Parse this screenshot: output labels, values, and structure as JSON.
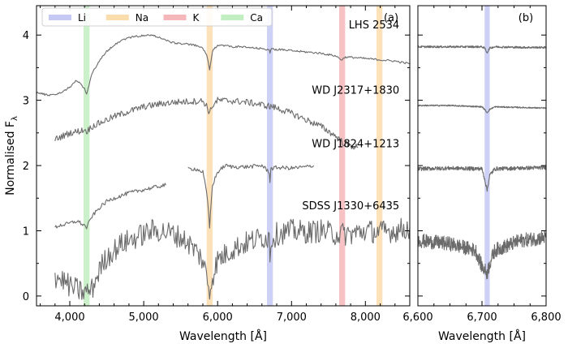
{
  "chart_data": [
    {
      "panel_label": "(a)",
      "type": "line",
      "xlabel": "Wavelength [Å]",
      "ylabel": "Normalised F",
      "ylabel_sub": "λ",
      "xlim": [
        3550,
        8600
      ],
      "ylim": [
        -0.15,
        4.45
      ],
      "xticks": [
        4000,
        5000,
        6000,
        7000,
        8000
      ],
      "xtick_labels": [
        "4,000",
        "5,000",
        "6,000",
        "7,000",
        "8,000"
      ],
      "xtick_minor": [
        3600,
        3800,
        4200,
        4400,
        4600,
        4800,
        5200,
        5400,
        5600,
        5800,
        6200,
        6400,
        6600,
        6800,
        7200,
        7400,
        7600,
        7800,
        8200,
        8400
      ],
      "yticks": [
        0,
        1,
        2,
        3,
        4
      ],
      "ytick_labels": [
        "0",
        "1",
        "2",
        "3",
        "4"
      ],
      "ytick_minor": [
        0.5,
        1.5,
        2.5,
        3.5
      ],
      "legend": {
        "placement": "top-left",
        "entries": [
          {
            "label": "Li",
            "color": "#c5c9f4"
          },
          {
            "label": "Na",
            "color": "#fbdcad"
          },
          {
            "label": "K",
            "color": "#f5b7ba"
          },
          {
            "label": "Ca",
            "color": "#c2efc2"
          }
        ]
      },
      "bands": [
        {
          "element": "Ca",
          "center": 4227,
          "width": 80,
          "color": "#c2efc2"
        },
        {
          "element": "Na",
          "center": 5892,
          "width": 80,
          "color": "#fbdcad"
        },
        {
          "element": "Li",
          "center": 6708,
          "width": 80,
          "color": "#c5c9f4"
        },
        {
          "element": "K",
          "center": 7685,
          "width": 80,
          "color": "#f5b7ba"
        },
        {
          "element": "Na",
          "center": 8190,
          "width": 80,
          "color": "#fbdcad"
        }
      ],
      "series": [
        {
          "name": "LHS 2534",
          "label_anchor": [
            8460,
            4.1
          ],
          "noise": 0.015,
          "x": [
            3550,
            3700,
            3850,
            4000,
            4080,
            4150,
            4200,
            4227,
            4260,
            4300,
            4400,
            4500,
            4600,
            4700,
            4800,
            4900,
            5000,
            5100,
            5200,
            5300,
            5400,
            5500,
            5600,
            5700,
            5800,
            5850,
            5880,
            5892,
            5905,
            5930,
            6000,
            6100,
            6200,
            6300,
            6400,
            6500,
            6600,
            6700,
            6708,
            6720,
            6800,
            6900,
            7000,
            7100,
            7200,
            7300,
            7400,
            7500,
            7600,
            7650,
            7685,
            7720,
            7800,
            7900,
            8000,
            8100,
            8200,
            8300,
            8400,
            8500,
            8600
          ],
          "y": [
            3.12,
            3.08,
            3.1,
            3.2,
            3.3,
            3.25,
            3.18,
            3.1,
            3.22,
            3.42,
            3.6,
            3.75,
            3.85,
            3.92,
            3.96,
            3.98,
            3.99,
            4.0,
            3.97,
            3.92,
            3.88,
            3.87,
            3.86,
            3.84,
            3.8,
            3.7,
            3.55,
            3.45,
            3.55,
            3.75,
            3.85,
            3.84,
            3.82,
            3.82,
            3.81,
            3.8,
            3.79,
            3.78,
            3.72,
            3.78,
            3.78,
            3.77,
            3.76,
            3.75,
            3.74,
            3.73,
            3.72,
            3.7,
            3.68,
            3.64,
            3.62,
            3.66,
            3.66,
            3.65,
            3.64,
            3.63,
            3.62,
            3.61,
            3.6,
            3.58,
            3.56
          ]
        },
        {
          "name": "WD J2317+1830",
          "label_anchor": [
            8460,
            3.1
          ],
          "noise": 0.05,
          "x": [
            3800,
            3900,
            4000,
            4100,
            4200,
            4227,
            4300,
            4400,
            4600,
            4800,
            5000,
            5200,
            5400,
            5600,
            5800,
            5850,
            5892,
            5930,
            6000,
            6200,
            6400,
            6600,
            6700,
            6708,
            6720,
            6800,
            7000,
            7200,
            7400,
            7600,
            7700,
            7800,
            7900
          ],
          "y": [
            2.4,
            2.45,
            2.5,
            2.52,
            2.55,
            2.52,
            2.6,
            2.65,
            2.75,
            2.83,
            2.9,
            2.94,
            2.97,
            2.98,
            2.99,
            2.92,
            2.8,
            2.92,
            3.0,
            2.99,
            2.97,
            2.93,
            2.91,
            2.89,
            2.91,
            2.88,
            2.8,
            2.7,
            2.6,
            2.45,
            2.35,
            2.3,
            2.28
          ]
        },
        {
          "name": "WD J1824+1213",
          "label_anchor": [
            8460,
            2.28
          ],
          "noise": 0.03,
          "segments": [
            {
              "x": [
                3800,
                3850,
                3950,
                4100,
                4200,
                4227,
                4250,
                4300,
                4400,
                4500,
                4600,
                4800,
                5000,
                5200,
                5300
              ],
              "y": [
                1.05,
                1.08,
                1.1,
                1.15,
                1.08,
                1.05,
                1.1,
                1.22,
                1.35,
                1.45,
                1.5,
                1.58,
                1.63,
                1.68,
                1.7
              ]
            },
            {
              "x": [
                5600,
                5700,
                5800,
                5850,
                5880,
                5892,
                5905,
                5930,
                6000,
                6100,
                6200,
                6400,
                6600,
                6700,
                6708,
                6720,
                6800,
                7000,
                7200,
                7300
              ],
              "y": [
                1.95,
                1.95,
                1.9,
                1.6,
                1.25,
                1.05,
                1.3,
                1.7,
                1.9,
                2.0,
                1.98,
                1.98,
                2.0,
                1.9,
                1.75,
                1.95,
                1.97,
                1.96,
                1.98,
                2.0
              ]
            }
          ]
        },
        {
          "name": "SDSS J1330+6435",
          "label_anchor": [
            8460,
            1.33
          ],
          "noise": 0.18,
          "x": [
            3800,
            3900,
            4000,
            4100,
            4200,
            4300,
            4400,
            4500,
            4600,
            4700,
            4800,
            4900,
            5000,
            5100,
            5200,
            5300,
            5400,
            5500,
            5600,
            5700,
            5800,
            5850,
            5892,
            5930,
            6000,
            6200,
            6400,
            6600,
            6700,
            6708,
            6720,
            6800,
            7000,
            7200,
            7400,
            7600,
            7800,
            8000,
            8200,
            8400,
            8600
          ],
          "y": [
            0.3,
            0.25,
            0.15,
            0.1,
            0.05,
            0.1,
            0.4,
            0.6,
            0.7,
            0.8,
            0.85,
            0.9,
            0.95,
            1.0,
            1.0,
            0.98,
            0.95,
            0.9,
            0.82,
            0.7,
            0.55,
            0.3,
            0.05,
            0.3,
            0.55,
            0.72,
            0.82,
            0.9,
            0.9,
            0.6,
            0.85,
            0.95,
            1.0,
            0.98,
            1.0,
            0.95,
            0.95,
            1.0,
            0.98,
            1.0,
            1.05
          ]
        }
      ]
    },
    {
      "panel_label": "(b)",
      "type": "line",
      "xlabel": "Wavelength [Å]",
      "xlim": [
        6600,
        6800
      ],
      "ylim": [
        -0.15,
        4.45
      ],
      "xticks": [
        6600,
        6700,
        6800
      ],
      "xtick_labels": [
        "6,600",
        "6,700",
        "6,800"
      ],
      "xtick_minor": [
        6625,
        6650,
        6675,
        6725,
        6750,
        6775
      ],
      "yticks": [
        0,
        1,
        2,
        3,
        4
      ],
      "ytick_minor": [
        0.5,
        1.5,
        2.5,
        3.5
      ],
      "bands": [
        {
          "element": "Li",
          "center": 6708,
          "width": 8,
          "color": "#c5c9f4"
        }
      ],
      "series": [
        {
          "name": "LHS 2534",
          "noise": 0.015,
          "x": [
            6600,
            6650,
            6700,
            6704,
            6708,
            6712,
            6720,
            6760,
            6800
          ],
          "y": [
            3.82,
            3.82,
            3.82,
            3.8,
            3.73,
            3.8,
            3.82,
            3.81,
            3.81
          ]
        },
        {
          "name": "WD J2317+1830",
          "noise": 0.01,
          "x": [
            6600,
            6650,
            6700,
            6704,
            6708,
            6712,
            6720,
            6760,
            6800
          ],
          "y": [
            2.92,
            2.92,
            2.9,
            2.86,
            2.81,
            2.86,
            2.9,
            2.89,
            2.88
          ]
        },
        {
          "name": "WD J1824+1213",
          "noise": 0.03,
          "x": [
            6600,
            6650,
            6700,
            6704,
            6708,
            6712,
            6720,
            6760,
            6800
          ],
          "y": [
            1.95,
            1.96,
            1.95,
            1.8,
            1.62,
            1.85,
            1.95,
            1.96,
            1.97
          ]
        },
        {
          "name": "SDSS J1330+6435",
          "noise": 0.11,
          "x": [
            6600,
            6650,
            6690,
            6700,
            6704,
            6708,
            6712,
            6720,
            6760,
            6800
          ],
          "y": [
            0.85,
            0.8,
            0.7,
            0.45,
            0.4,
            0.35,
            0.5,
            0.7,
            0.85,
            0.9
          ]
        }
      ]
    }
  ]
}
